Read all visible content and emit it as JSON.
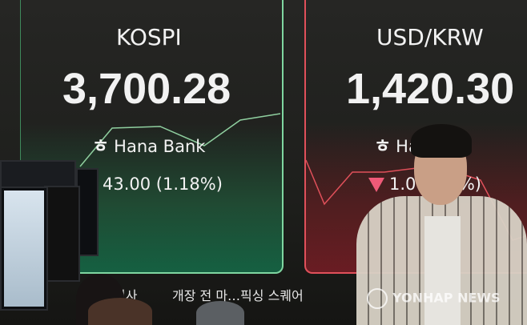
{
  "kospi": {
    "name": "KOSPI",
    "value": "3,700.28",
    "bank": "Hana Bank",
    "bank_logo": "ㅎ",
    "change": "43.00 (1.18%)",
    "direction": "up",
    "accent": "#7fd6a0"
  },
  "usdkrw": {
    "name": "USD/KRW",
    "value": "1,420.30",
    "bank": "Ha   ank",
    "bank_logo": "ㅎ",
    "change": "1.00  07%)",
    "direction": "down",
    "accent": "#e0505a",
    "arrow_color": "#ef5a78"
  },
  "ticker": {
    "left": "회사",
    "center": "개장 전 마…픽싱 스퀘어"
  },
  "watermark": {
    "text": "YONHAP NEWS"
  }
}
